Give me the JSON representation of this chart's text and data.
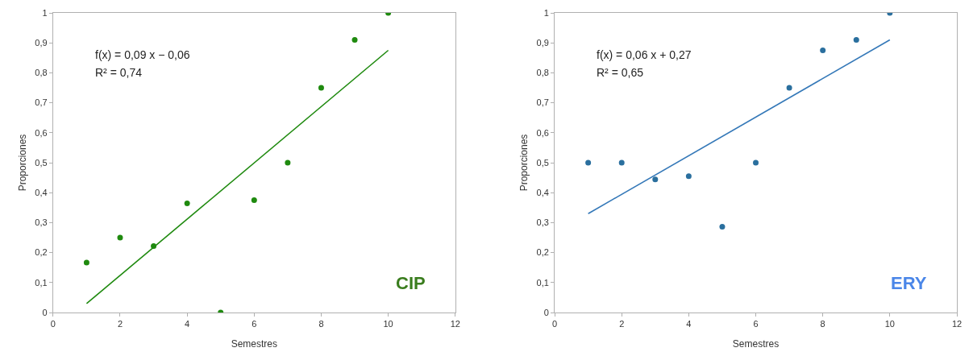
{
  "chart_data": [
    {
      "type": "scatter",
      "xlabel": "Semestres",
      "ylabel": "Proporciones",
      "xlim": [
        0,
        12
      ],
      "xticks": [
        0,
        2,
        4,
        6,
        8,
        10,
        12
      ],
      "ylim": [
        0,
        1
      ],
      "yticks": [
        0,
        {
          "value": 0.1,
          "label": "0,1"
        },
        {
          "value": 0.2,
          "label": "0,2"
        },
        {
          "value": 0.3,
          "label": "0,3"
        },
        {
          "value": 0.4,
          "label": "0,4"
        },
        {
          "value": 0.5,
          "label": "0,5"
        },
        {
          "value": 0.6,
          "label": "0,6"
        },
        {
          "value": 0.7,
          "label": "0,7"
        },
        {
          "value": 0.8,
          "label": "0,8"
        },
        {
          "value": 0.9,
          "label": "0,9"
        },
        1
      ],
      "series": [
        {
          "marker": "circle",
          "color": "#1f8a0f",
          "x": [
            1,
            2,
            3,
            4,
            5,
            6,
            7,
            8,
            9,
            10
          ],
          "values": [
            0.167,
            0.25,
            0.222,
            0.364,
            0,
            0.375,
            0.5,
            0.75,
            0.91,
            1.0
          ]
        },
        {
          "type": "line",
          "color": "#1f8a0f",
          "x": [
            1,
            10
          ],
          "values": [
            0.03,
            0.875
          ]
        }
      ],
      "annotations": [
        "f(x) = 0,09 x − 0,06",
        "R² = 0,74",
        "CIP"
      ]
    },
    {
      "type": "scatter",
      "xlabel": "Semestres",
      "ylabel": "Proporciones",
      "xlim": [
        0,
        12
      ],
      "xticks": [
        0,
        2,
        4,
        6,
        8,
        10,
        12
      ],
      "ylim": [
        0,
        1
      ],
      "yticks": [
        0,
        {
          "value": 0.1,
          "label": "0,1"
        },
        {
          "value": 0.2,
          "label": "0,2"
        },
        {
          "value": 0.3,
          "label": "0,3"
        },
        {
          "value": 0.4,
          "label": "0,4"
        },
        {
          "value": 0.5,
          "label": "0,5"
        },
        {
          "value": 0.6,
          "label": "0,6"
        },
        {
          "value": 0.7,
          "label": "0,7"
        },
        {
          "value": 0.8,
          "label": "0,8"
        },
        {
          "value": 0.9,
          "label": "0,9"
        },
        1
      ],
      "series": [
        {
          "marker": "circle",
          "color": "#2a6f9e",
          "x": [
            1,
            2,
            3,
            4,
            5,
            6,
            7,
            8,
            9,
            10
          ],
          "values": [
            0.5,
            0.5,
            0.444,
            0.455,
            0.286,
            0.5,
            0.75,
            0.875,
            0.91,
            1.0
          ]
        },
        {
          "type": "line",
          "color": "#3478b8",
          "x": [
            1,
            10
          ],
          "values": [
            0.33,
            0.91
          ]
        }
      ],
      "annotations": [
        "f(x) = 0,06 x + 0,27",
        "R² = 0,65",
        "ERY"
      ]
    }
  ]
}
